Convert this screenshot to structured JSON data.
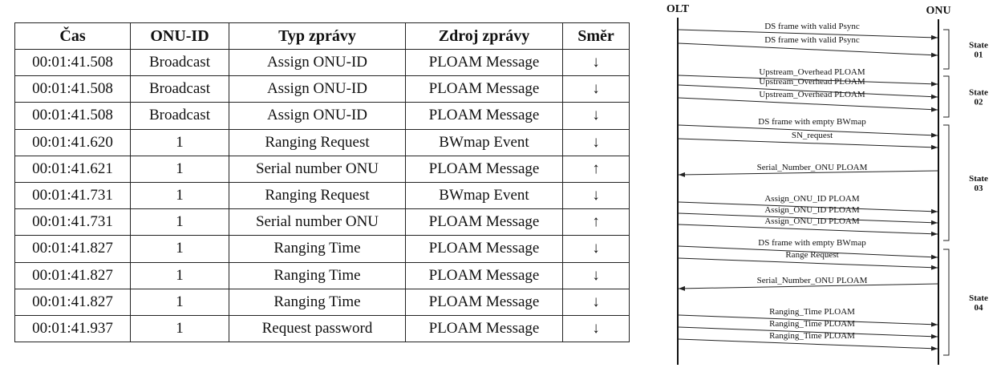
{
  "table": {
    "headers": [
      "Čas",
      "ONU-ID",
      "Typ zprávy",
      "Zdroj zprávy",
      "Směr"
    ],
    "rows": [
      [
        "00:01:41.508",
        "Broadcast",
        "Assign ONU-ID",
        "PLOAM Message",
        "↓"
      ],
      [
        "00:01:41.508",
        "Broadcast",
        "Assign ONU-ID",
        "PLOAM Message",
        "↓"
      ],
      [
        "00:01:41.508",
        "Broadcast",
        "Assign ONU-ID",
        "PLOAM Message",
        "↓"
      ],
      [
        "00:01:41.620",
        "1",
        "Ranging Request",
        "BWmap Event",
        "↓"
      ],
      [
        "00:01:41.621",
        "1",
        "Serial number ONU",
        "PLOAM Message",
        "↑"
      ],
      [
        "00:01:41.731",
        "1",
        "Ranging Request",
        "BWmap Event",
        "↓"
      ],
      [
        "00:01:41.731",
        "1",
        "Serial number ONU",
        "PLOAM Message",
        "↑"
      ],
      [
        "00:01:41.827",
        "1",
        "Ranging Time",
        "PLOAM Message",
        "↓"
      ],
      [
        "00:01:41.827",
        "1",
        "Ranging Time",
        "PLOAM Message",
        "↓"
      ],
      [
        "00:01:41.827",
        "1",
        "Ranging Time",
        "PLOAM Message",
        "↓"
      ],
      [
        "00:01:41.937",
        "1",
        "Request password",
        "PLOAM Message",
        "↓"
      ]
    ]
  },
  "diagram": {
    "left_actor": "OLT",
    "right_actor": "ONU",
    "messages": [
      {
        "text": "DS frame with valid Psync",
        "dir": "down"
      },
      {
        "text": "DS frame with valid Psync",
        "dir": "down"
      },
      {
        "text": "Upstream_Overhead PLOAM",
        "dir": "down"
      },
      {
        "text": "Upstream_Overhead PLOAM",
        "dir": "down"
      },
      {
        "text": "Upstream_Overhead PLOAM",
        "dir": "down"
      },
      {
        "text": "DS frame with empty BWmap",
        "dir": "down"
      },
      {
        "text": "SN_request",
        "dir": "down"
      },
      {
        "text": "Serial_Number_ONU PLOAM",
        "dir": "up"
      },
      {
        "text": "Assign_ONU_ID PLOAM",
        "dir": "down"
      },
      {
        "text": "Assign_ONU_ID PLOAM",
        "dir": "down"
      },
      {
        "text": "Assign_ONU_ID PLOAM",
        "dir": "down"
      },
      {
        "text": "DS frame with empty BWmap",
        "dir": "down"
      },
      {
        "text": "Range Request",
        "dir": "down"
      },
      {
        "text": "Serial_Number_ONU PLOAM",
        "dir": "up"
      },
      {
        "text": "Ranging_Time PLOAM",
        "dir": "down"
      },
      {
        "text": "Ranging_Time PLOAM",
        "dir": "down"
      },
      {
        "text": "Ranging_Time PLOAM",
        "dir": "down"
      }
    ],
    "states": [
      {
        "label": "State",
        "num": "01"
      },
      {
        "label": "State",
        "num": "02"
      },
      {
        "label": "State",
        "num": "03"
      },
      {
        "label": "State",
        "num": "04"
      }
    ]
  }
}
